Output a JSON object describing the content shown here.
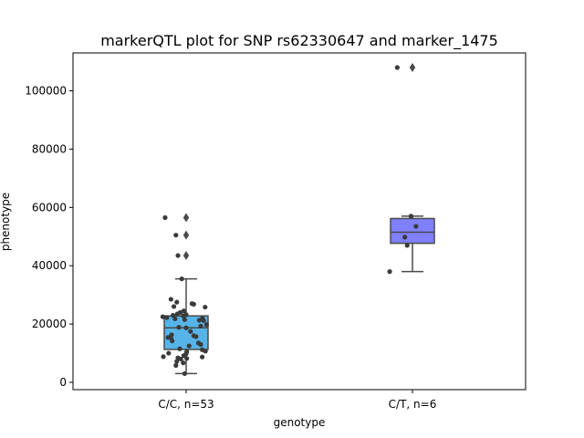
{
  "chart_data": {
    "type": "box",
    "title": "markerQTL plot for SNP rs62330647 and marker_1475",
    "xlabel": "genotype",
    "ylabel": "phenotype",
    "ylim": [
      -2500,
      113000
    ],
    "yticks": [
      0,
      20000,
      40000,
      60000,
      80000,
      100000
    ],
    "ytick_labels": [
      "0",
      "20000",
      "40000",
      "60000",
      "80000",
      "100000"
    ],
    "categories": [
      "C/C, n=53",
      "C/T, n=6"
    ],
    "colors": [
      "#56b4e9",
      "#8080ff"
    ],
    "edge_color": "#4a4a4a",
    "point_color": "#3a3a3a",
    "boxes": [
      {
        "category": "C/C, n=53",
        "q1": 11300,
        "median": 18700,
        "q3": 22800,
        "whisker_low": 3000,
        "whisker_high": 35500,
        "fliers": [
          43500,
          50500,
          56500
        ]
      },
      {
        "category": "C/T, n=6",
        "q1": 47700,
        "median": 51500,
        "q3": 56200,
        "whisker_low": 38000,
        "whisker_high": 57000,
        "fliers": [
          108000
        ]
      }
    ],
    "points": [
      [
        {
          "j": -0.72,
          "y": 56500
        },
        {
          "j": -0.35,
          "y": 50500
        },
        {
          "j": -0.28,
          "y": 43500
        },
        {
          "j": -0.15,
          "y": 35500
        },
        {
          "j": -0.52,
          "y": 28500
        },
        {
          "j": -0.32,
          "y": 27500
        },
        {
          "j": 0.2,
          "y": 27000
        },
        {
          "j": 0.26,
          "y": 26800
        },
        {
          "j": 0.65,
          "y": 25800
        },
        {
          "j": -0.42,
          "y": 26000
        },
        {
          "j": -0.08,
          "y": 24500
        },
        {
          "j": -0.2,
          "y": 24000
        },
        {
          "j": -0.3,
          "y": 23500
        },
        {
          "j": 0.0,
          "y": 23200
        },
        {
          "j": -0.45,
          "y": 23000
        },
        {
          "j": -0.1,
          "y": 22800
        },
        {
          "j": -0.8,
          "y": 22500
        },
        {
          "j": -0.66,
          "y": 22200
        },
        {
          "j": 0.56,
          "y": 22000
        },
        {
          "j": -0.38,
          "y": 21800
        },
        {
          "j": -0.05,
          "y": 21500
        },
        {
          "j": 0.45,
          "y": 21300
        },
        {
          "j": 0.6,
          "y": 21200
        },
        {
          "j": 0.7,
          "y": 19800
        },
        {
          "j": 0.5,
          "y": 19300
        },
        {
          "j": -0.25,
          "y": 18900
        },
        {
          "j": 0.0,
          "y": 18700
        },
        {
          "j": -0.5,
          "y": 16300
        },
        {
          "j": 0.26,
          "y": 16000
        },
        {
          "j": 0.34,
          "y": 15700
        },
        {
          "j": -0.62,
          "y": 15400
        },
        {
          "j": -0.52,
          "y": 15200
        },
        {
          "j": -0.48,
          "y": 14200
        },
        {
          "j": 0.42,
          "y": 13500
        },
        {
          "j": 0.5,
          "y": 13000
        },
        {
          "j": 0.1,
          "y": 12500
        },
        {
          "j": -0.22,
          "y": 11500
        },
        {
          "j": 0.55,
          "y": 11200
        },
        {
          "j": 0.66,
          "y": 10700
        },
        {
          "j": 0.02,
          "y": 10500
        },
        {
          "j": -0.6,
          "y": 10000
        },
        {
          "j": 0.0,
          "y": 9800
        },
        {
          "j": -0.08,
          "y": 9200
        },
        {
          "j": -0.78,
          "y": 8800
        },
        {
          "j": 0.55,
          "y": 8700
        },
        {
          "j": -0.28,
          "y": 8400
        },
        {
          "j": -0.18,
          "y": 8000
        },
        {
          "j": 0.02,
          "y": 8200
        },
        {
          "j": -0.32,
          "y": 7200
        },
        {
          "j": -0.1,
          "y": 6700
        },
        {
          "j": -0.35,
          "y": 5800
        },
        {
          "j": -0.05,
          "y": 3000
        },
        {
          "j": 0.15,
          "y": 17500
        }
      ],
      [
        {
          "j": -0.52,
          "y": 108000
        },
        {
          "j": -0.05,
          "y": 57000
        },
        {
          "j": 0.12,
          "y": 53500
        },
        {
          "j": -0.26,
          "y": 49800
        },
        {
          "j": -0.18,
          "y": 47000
        },
        {
          "j": -0.78,
          "y": 38000
        }
      ]
    ]
  }
}
